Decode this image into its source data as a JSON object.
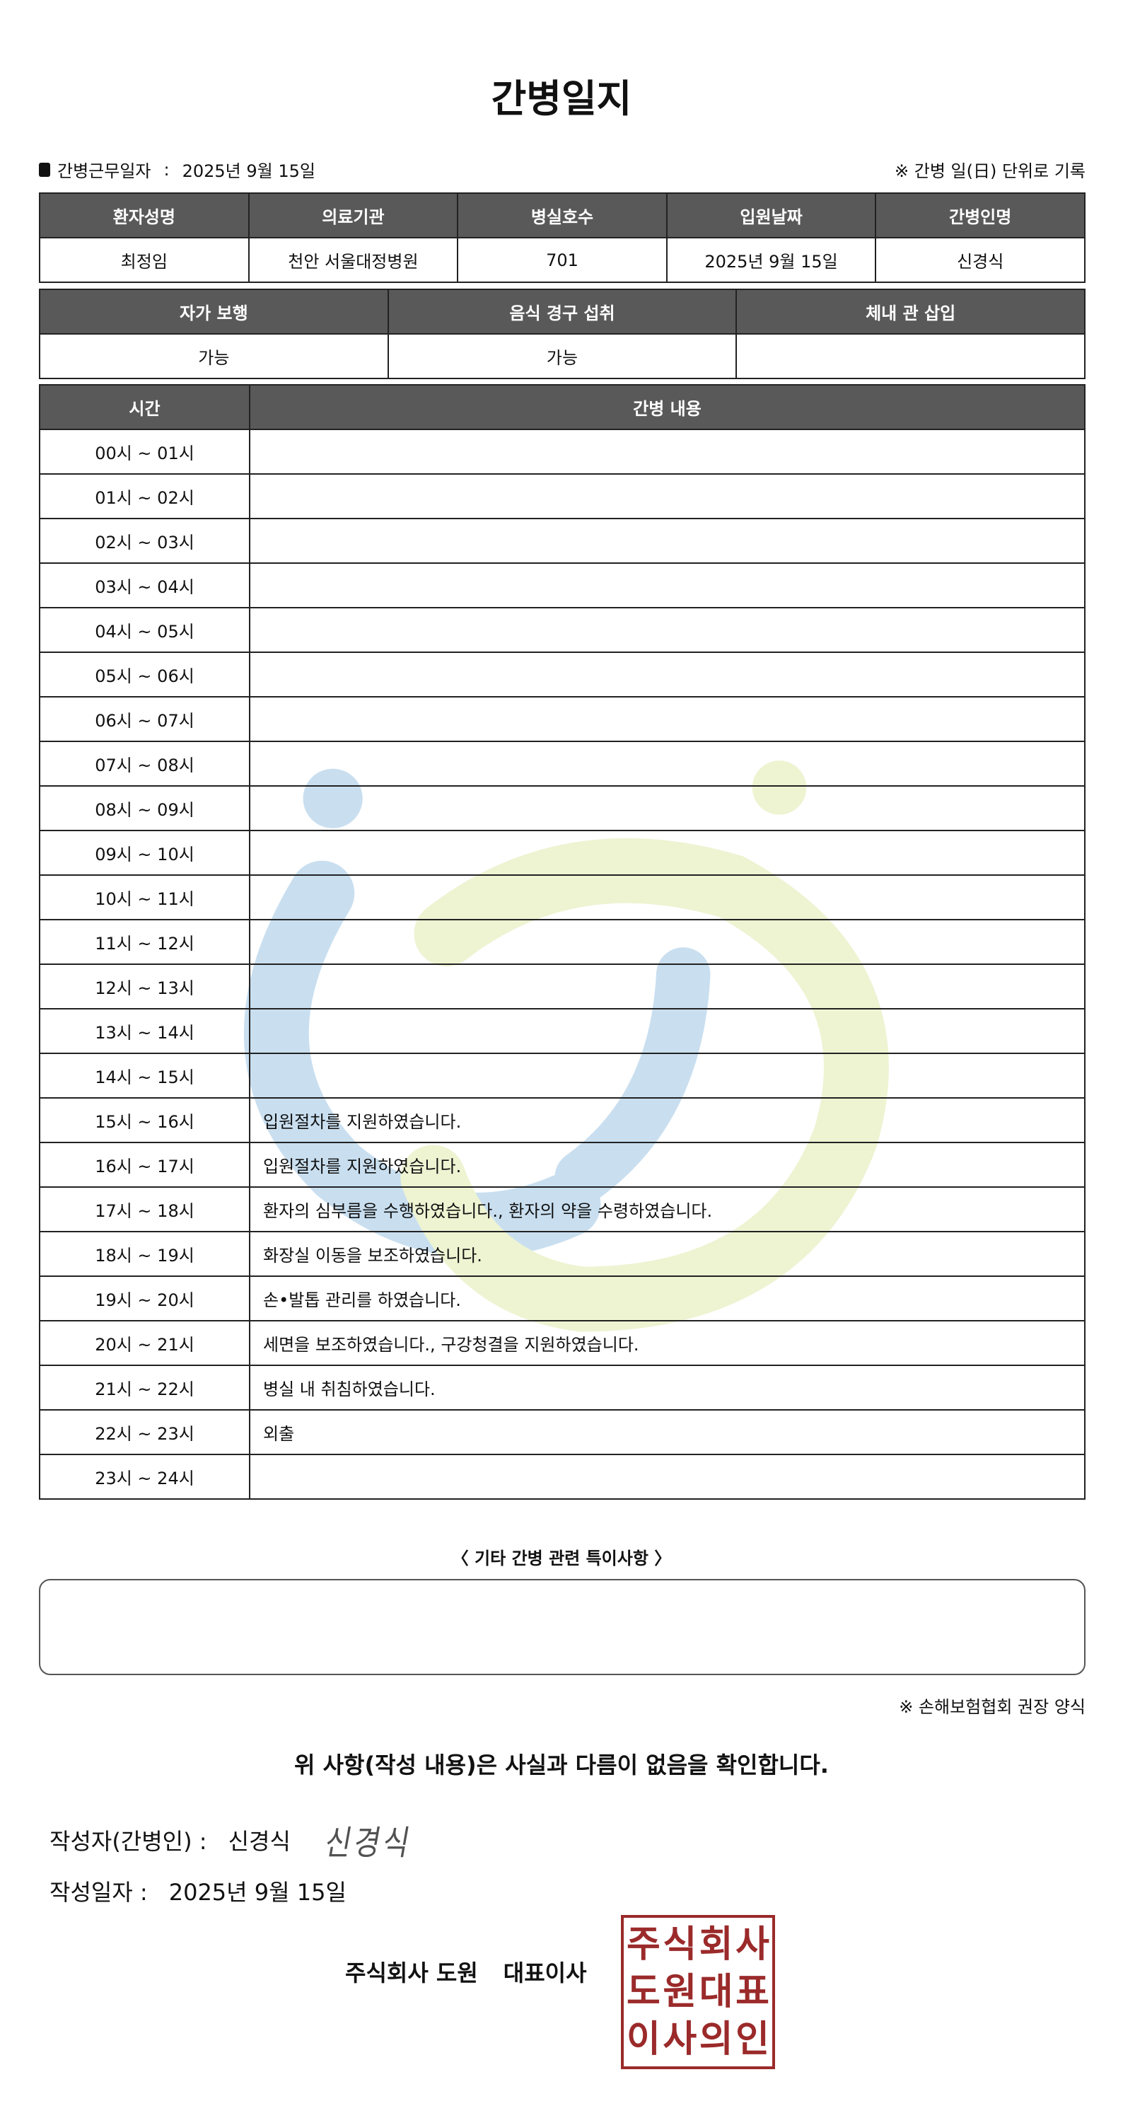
{
  "title": "간병일지",
  "work_date_label": "간병근무일자",
  "work_date_sep": ":",
  "work_date": "2025년 9월 15일",
  "unit_note": "※ 간병 일(日) 단위로 기록",
  "patient_table": {
    "headers": [
      "환자성명",
      "의료기관",
      "병실호수",
      "입원날짜",
      "간병인명"
    ],
    "values": [
      "최정임",
      "천안 서울대정병원",
      "701",
      "2025년 9월 15일",
      "신경식"
    ]
  },
  "status_table": {
    "headers": [
      "자가 보행",
      "음식 경구 섭취",
      "체내 관 삽입"
    ],
    "values": [
      "가능",
      "가능",
      ""
    ]
  },
  "log_table": {
    "headers": [
      "시간",
      "간병 내용"
    ],
    "rows": [
      {
        "time": "00시 ~ 01시",
        "content": ""
      },
      {
        "time": "01시 ~ 02시",
        "content": ""
      },
      {
        "time": "02시 ~ 03시",
        "content": ""
      },
      {
        "time": "03시 ~ 04시",
        "content": ""
      },
      {
        "time": "04시 ~ 05시",
        "content": ""
      },
      {
        "time": "05시 ~ 06시",
        "content": ""
      },
      {
        "time": "06시 ~ 07시",
        "content": ""
      },
      {
        "time": "07시 ~ 08시",
        "content": ""
      },
      {
        "time": "08시 ~ 09시",
        "content": ""
      },
      {
        "time": "09시 ~ 10시",
        "content": ""
      },
      {
        "time": "10시 ~ 11시",
        "content": ""
      },
      {
        "time": "11시 ~ 12시",
        "content": ""
      },
      {
        "time": "12시 ~ 13시",
        "content": ""
      },
      {
        "time": "13시 ~ 14시",
        "content": ""
      },
      {
        "time": "14시 ~ 15시",
        "content": ""
      },
      {
        "time": "15시 ~ 16시",
        "content": "입원절차를 지원하였습니다."
      },
      {
        "time": "16시 ~ 17시",
        "content": "입원절차를 지원하였습니다."
      },
      {
        "time": "17시 ~ 18시",
        "content": "환자의 심부름을 수행하였습니다., 환자의 약을 수령하였습니다."
      },
      {
        "time": "18시 ~ 19시",
        "content": "화장실 이동을 보조하였습니다."
      },
      {
        "time": "19시 ~ 20시",
        "content": "손•발톱 관리를 하였습니다."
      },
      {
        "time": "20시 ~ 21시",
        "content": "세면을 보조하였습니다., 구강청결을 지원하였습니다."
      },
      {
        "time": "21시 ~ 22시",
        "content": "병실 내 취침하였습니다."
      },
      {
        "time": "22시 ~ 23시",
        "content": "외출"
      },
      {
        "time": "23시 ~ 24시",
        "content": ""
      }
    ]
  },
  "special_notes_title": "〈 기타 간병 관련 특이사항 〉",
  "special_notes": "",
  "recommend_note": "※ 손해보험협회 권장 양식",
  "confirm_text": "위 사항(작성 내용)은 사실과 다름이 없음을 확인합니다.",
  "writer_label": "작성자(간병인) :",
  "writer_name": "신경식",
  "signature": "신경식",
  "write_date_label": "작성일자 :",
  "write_date": "2025년 9월 15일",
  "company": "주식회사 도원",
  "ceo_title": "대표이사",
  "stamp_text": [
    "주식회사",
    "도원대표",
    "이사의인"
  ],
  "colors": {
    "header_bg": "#595959",
    "stamp": "#9b2a2a",
    "watermark_blue": "#c9dff0",
    "watermark_green": "#eef3d2"
  }
}
